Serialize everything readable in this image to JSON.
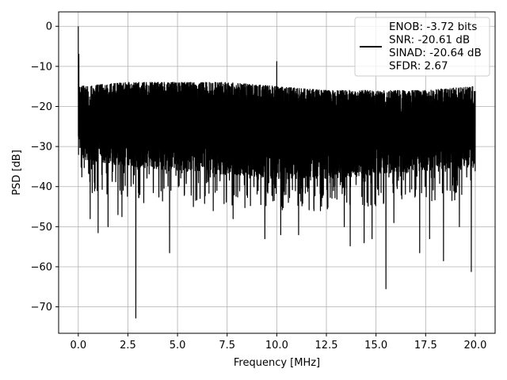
{
  "chart_data": {
    "type": "line",
    "title": "",
    "xlabel": "Frequency [MHz]",
    "ylabel": "PSD [dB]",
    "xlim": [
      -0.99,
      21.0
    ],
    "ylim": [
      -76.6,
      3.6
    ],
    "xticks": [
      0.0,
      2.5,
      5.0,
      7.5,
      10.0,
      12.5,
      15.0,
      17.5,
      20.0
    ],
    "xtick_labels": [
      "0.0",
      "2.5",
      "5.0",
      "7.5",
      "10.0",
      "12.5",
      "15.0",
      "17.5",
      "20.0"
    ],
    "yticks": [
      0,
      -10,
      -20,
      -30,
      -40,
      -50,
      -60,
      -70
    ],
    "ytick_labels": [
      "0",
      "−10",
      "−20",
      "−30",
      "−40",
      "−50",
      "−60",
      "−70"
    ],
    "grid": true,
    "legend_position": "top-right",
    "line_color": "#000000",
    "series": [
      {
        "name": "ENOB: -3.72 bits\nSNR: -20.61 dB\nSINAD: -20.64 dB\nSFDR: 2.67",
        "noise_upper_envelope": [
          [
            0.0,
            -15
          ],
          [
            2.5,
            -14
          ],
          [
            5.0,
            -14
          ],
          [
            7.5,
            -14
          ],
          [
            10.0,
            -15
          ],
          [
            12.5,
            -16
          ],
          [
            15.0,
            -16
          ],
          [
            17.5,
            -16
          ],
          [
            20.0,
            -15
          ]
        ],
        "noise_lower_envelope": [
          [
            0.0,
            -33
          ],
          [
            2.5,
            -35
          ],
          [
            5.0,
            -36
          ],
          [
            7.5,
            -37
          ],
          [
            10.0,
            -38
          ],
          [
            12.5,
            -38
          ],
          [
            15.0,
            -37
          ],
          [
            17.5,
            -36
          ],
          [
            20.0,
            -35
          ]
        ],
        "peaks": [
          {
            "x": 0.0,
            "y": 0.0
          },
          {
            "x": 0.03,
            "y": -7
          },
          {
            "x": 10.0,
            "y": -8.8
          }
        ],
        "deep_nulls": [
          {
            "x": 0.6,
            "y": -48
          },
          {
            "x": 1.0,
            "y": -51.5
          },
          {
            "x": 1.5,
            "y": -50
          },
          {
            "x": 2.0,
            "y": -47
          },
          {
            "x": 2.2,
            "y": -47.5
          },
          {
            "x": 2.9,
            "y": -72.8
          },
          {
            "x": 3.3,
            "y": -44
          },
          {
            "x": 4.6,
            "y": -56.5
          },
          {
            "x": 5.8,
            "y": -45
          },
          {
            "x": 6.8,
            "y": -46
          },
          {
            "x": 7.8,
            "y": -48
          },
          {
            "x": 9.4,
            "y": -53
          },
          {
            "x": 10.2,
            "y": -52
          },
          {
            "x": 11.1,
            "y": -52
          },
          {
            "x": 12.2,
            "y": -46
          },
          {
            "x": 13.4,
            "y": -50
          },
          {
            "x": 13.7,
            "y": -54.8
          },
          {
            "x": 14.4,
            "y": -54
          },
          {
            "x": 14.8,
            "y": -53
          },
          {
            "x": 15.5,
            "y": -65.5
          },
          {
            "x": 15.9,
            "y": -49
          },
          {
            "x": 17.2,
            "y": -56.5
          },
          {
            "x": 17.7,
            "y": -53
          },
          {
            "x": 18.4,
            "y": -58.5
          },
          {
            "x": 19.2,
            "y": -50
          },
          {
            "x": 19.8,
            "y": -61.2
          }
        ]
      }
    ]
  }
}
